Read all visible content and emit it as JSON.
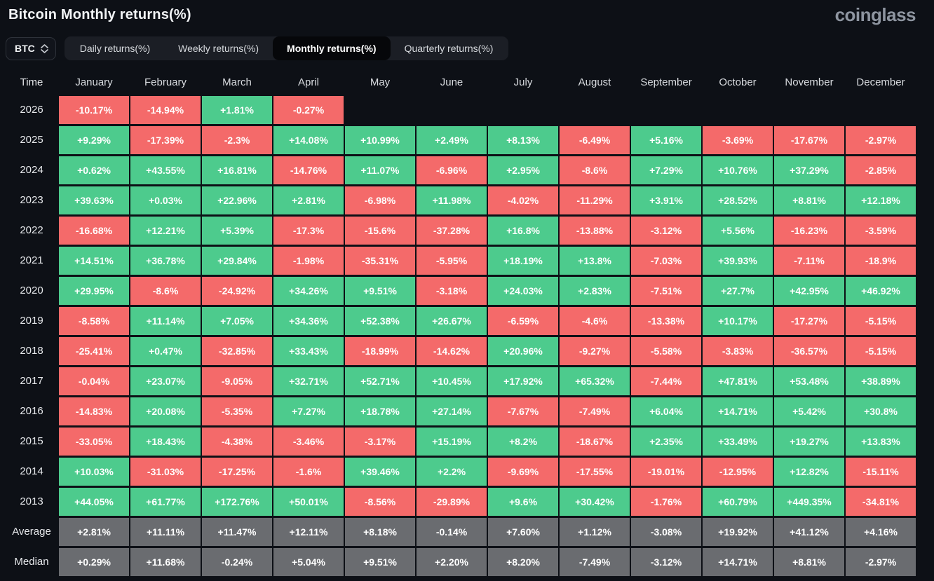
{
  "header": {
    "title": "Bitcoin Monthly returns(%)",
    "brand": "coinglass"
  },
  "controls": {
    "symbol": "BTC",
    "tabs": [
      {
        "label": "Daily returns(%)",
        "active": false
      },
      {
        "label": "Weekly returns(%)",
        "active": false
      },
      {
        "label": "Monthly returns(%)",
        "active": true
      },
      {
        "label": "Quarterly returns(%)",
        "active": false
      }
    ]
  },
  "colors": {
    "positive": "#4dcb8d",
    "negative": "#f46a6a",
    "summary_row": "#6a6c70",
    "background": "#0d1016",
    "tab_active_bg": "#06070a"
  },
  "table": {
    "time_header": "Time",
    "months": [
      "January",
      "February",
      "March",
      "April",
      "May",
      "June",
      "July",
      "August",
      "September",
      "October",
      "November",
      "December"
    ],
    "rows": [
      {
        "label": "2026",
        "type": "year",
        "values": [
          "-10.17%",
          "-14.94%",
          "+1.81%",
          "-0.27%",
          "",
          "",
          "",
          "",
          "",
          "",
          "",
          ""
        ]
      },
      {
        "label": "2025",
        "type": "year",
        "values": [
          "+9.29%",
          "-17.39%",
          "-2.3%",
          "+14.08%",
          "+10.99%",
          "+2.49%",
          "+8.13%",
          "-6.49%",
          "+5.16%",
          "-3.69%",
          "-17.67%",
          "-2.97%"
        ]
      },
      {
        "label": "2024",
        "type": "year",
        "values": [
          "+0.62%",
          "+43.55%",
          "+16.81%",
          "-14.76%",
          "+11.07%",
          "-6.96%",
          "+2.95%",
          "-8.6%",
          "+7.29%",
          "+10.76%",
          "+37.29%",
          "-2.85%"
        ]
      },
      {
        "label": "2023",
        "type": "year",
        "values": [
          "+39.63%",
          "+0.03%",
          "+22.96%",
          "+2.81%",
          "-6.98%",
          "+11.98%",
          "-4.02%",
          "-11.29%",
          "+3.91%",
          "+28.52%",
          "+8.81%",
          "+12.18%"
        ]
      },
      {
        "label": "2022",
        "type": "year",
        "values": [
          "-16.68%",
          "+12.21%",
          "+5.39%",
          "-17.3%",
          "-15.6%",
          "-37.28%",
          "+16.8%",
          "-13.88%",
          "-3.12%",
          "+5.56%",
          "-16.23%",
          "-3.59%"
        ]
      },
      {
        "label": "2021",
        "type": "year",
        "values": [
          "+14.51%",
          "+36.78%",
          "+29.84%",
          "-1.98%",
          "-35.31%",
          "-5.95%",
          "+18.19%",
          "+13.8%",
          "-7.03%",
          "+39.93%",
          "-7.11%",
          "-18.9%"
        ]
      },
      {
        "label": "2020",
        "type": "year",
        "values": [
          "+29.95%",
          "-8.6%",
          "-24.92%",
          "+34.26%",
          "+9.51%",
          "-3.18%",
          "+24.03%",
          "+2.83%",
          "-7.51%",
          "+27.7%",
          "+42.95%",
          "+46.92%"
        ]
      },
      {
        "label": "2019",
        "type": "year",
        "values": [
          "-8.58%",
          "+11.14%",
          "+7.05%",
          "+34.36%",
          "+52.38%",
          "+26.67%",
          "-6.59%",
          "-4.6%",
          "-13.38%",
          "+10.17%",
          "-17.27%",
          "-5.15%"
        ]
      },
      {
        "label": "2018",
        "type": "year",
        "values": [
          "-25.41%",
          "+0.47%",
          "-32.85%",
          "+33.43%",
          "-18.99%",
          "-14.62%",
          "+20.96%",
          "-9.27%",
          "-5.58%",
          "-3.83%",
          "-36.57%",
          "-5.15%"
        ]
      },
      {
        "label": "2017",
        "type": "year",
        "values": [
          "-0.04%",
          "+23.07%",
          "-9.05%",
          "+32.71%",
          "+52.71%",
          "+10.45%",
          "+17.92%",
          "+65.32%",
          "-7.44%",
          "+47.81%",
          "+53.48%",
          "+38.89%"
        ]
      },
      {
        "label": "2016",
        "type": "year",
        "values": [
          "-14.83%",
          "+20.08%",
          "-5.35%",
          "+7.27%",
          "+18.78%",
          "+27.14%",
          "-7.67%",
          "-7.49%",
          "+6.04%",
          "+14.71%",
          "+5.42%",
          "+30.8%"
        ]
      },
      {
        "label": "2015",
        "type": "year",
        "values": [
          "-33.05%",
          "+18.43%",
          "-4.38%",
          "-3.46%",
          "-3.17%",
          "+15.19%",
          "+8.2%",
          "-18.67%",
          "+2.35%",
          "+33.49%",
          "+19.27%",
          "+13.83%"
        ]
      },
      {
        "label": "2014",
        "type": "year",
        "values": [
          "+10.03%",
          "-31.03%",
          "-17.25%",
          "-1.6%",
          "+39.46%",
          "+2.2%",
          "-9.69%",
          "-17.55%",
          "-19.01%",
          "-12.95%",
          "+12.82%",
          "-15.11%"
        ]
      },
      {
        "label": "2013",
        "type": "year",
        "values": [
          "+44.05%",
          "+61.77%",
          "+172.76%",
          "+50.01%",
          "-8.56%",
          "-29.89%",
          "+9.6%",
          "+30.42%",
          "-1.76%",
          "+60.79%",
          "+449.35%",
          "-34.81%"
        ]
      },
      {
        "label": "Average",
        "type": "summary",
        "values": [
          "+2.81%",
          "+11.11%",
          "+11.47%",
          "+12.11%",
          "+8.18%",
          "-0.14%",
          "+7.60%",
          "+1.12%",
          "-3.08%",
          "+19.92%",
          "+41.12%",
          "+4.16%"
        ]
      },
      {
        "label": "Median",
        "type": "summary",
        "values": [
          "+0.29%",
          "+11.68%",
          "-0.24%",
          "+5.04%",
          "+9.51%",
          "+2.20%",
          "+8.20%",
          "-7.49%",
          "-3.12%",
          "+14.71%",
          "+8.81%",
          "-2.97%"
        ]
      }
    ]
  }
}
